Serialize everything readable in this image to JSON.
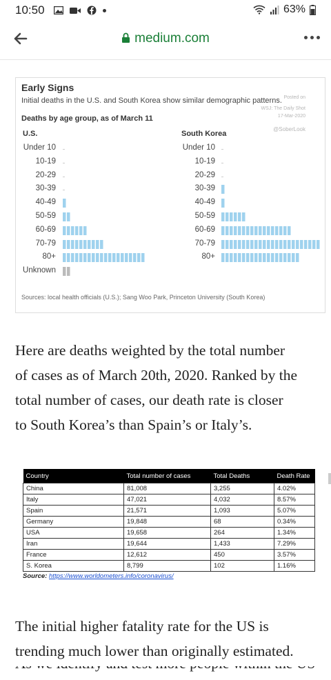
{
  "status_bar": {
    "time": "10:50",
    "battery": "63%"
  },
  "browser": {
    "url": "medium.com"
  },
  "figure": {
    "title": "Early Signs",
    "subtitle": "Initial deaths in the U.S. and South Korea show similar demographic patterns.",
    "watermark": [
      "Posted on",
      "WSJ: The Daily Shot",
      "17-Mar-2020",
      "@SoberLook"
    ],
    "heading": "Deaths by age group, as of March 11",
    "source": "Sources: local health officials (U.S.); Sang Woo Park, Princeton University (South Korea)"
  },
  "chart_data": [
    {
      "type": "bar",
      "orientation": "horizontal",
      "title": "U.S.",
      "categories": [
        "Under 10",
        "10-19",
        "20-29",
        "30-39",
        "40-49",
        "50-59",
        "60-69",
        "70-79",
        "80+",
        "Unknown"
      ],
      "values": [
        0,
        0,
        0,
        0,
        1,
        2,
        6,
        10,
        20,
        2
      ]
    },
    {
      "type": "bar",
      "orientation": "horizontal",
      "title": "South Korea",
      "categories": [
        "Under 10",
        "10-19",
        "20-29",
        "30-39",
        "40-49",
        "50-59",
        "60-69",
        "70-79",
        "80+"
      ],
      "values": [
        0,
        0,
        0,
        1,
        1,
        6,
        17,
        24,
        19
      ]
    }
  ],
  "paragraph1": [
    "Here are deaths weighted by the total number",
    "of cases as of March 20th, 2020. Ranked by the",
    "total number of cases, our death rate is closer",
    "to South Korea’s than Spain’s or Italy’s."
  ],
  "table": {
    "headers": [
      "Country",
      "Total number of cases",
      "Total Deaths",
      "Death Rate"
    ],
    "rows": [
      [
        "China",
        "81,008",
        "3,255",
        "4.02%"
      ],
      [
        "Italy",
        "47,021",
        "4,032",
        "8.57%"
      ],
      [
        "Spain",
        "21,571",
        "1,093",
        "5.07%"
      ],
      [
        "Germany",
        "19,848",
        "68",
        "0.34%"
      ],
      [
        "USA",
        "19,658",
        "264",
        "1.34%"
      ],
      [
        "Iran",
        "19,644",
        "1,433",
        "7.29%"
      ],
      [
        "France",
        "12,612",
        "450",
        "3.57%"
      ],
      [
        "S. Korea",
        "8,799",
        "102",
        "1.16%"
      ]
    ],
    "source_label": "Source:",
    "source_link": "https://www.worldometers.info/coronavirus/"
  },
  "paragraph2": [
    "The initial higher fatality rate for the US is",
    "trending much lower than originally estimated."
  ],
  "paragraph2_cut": "As we identify and test more people within the US"
}
